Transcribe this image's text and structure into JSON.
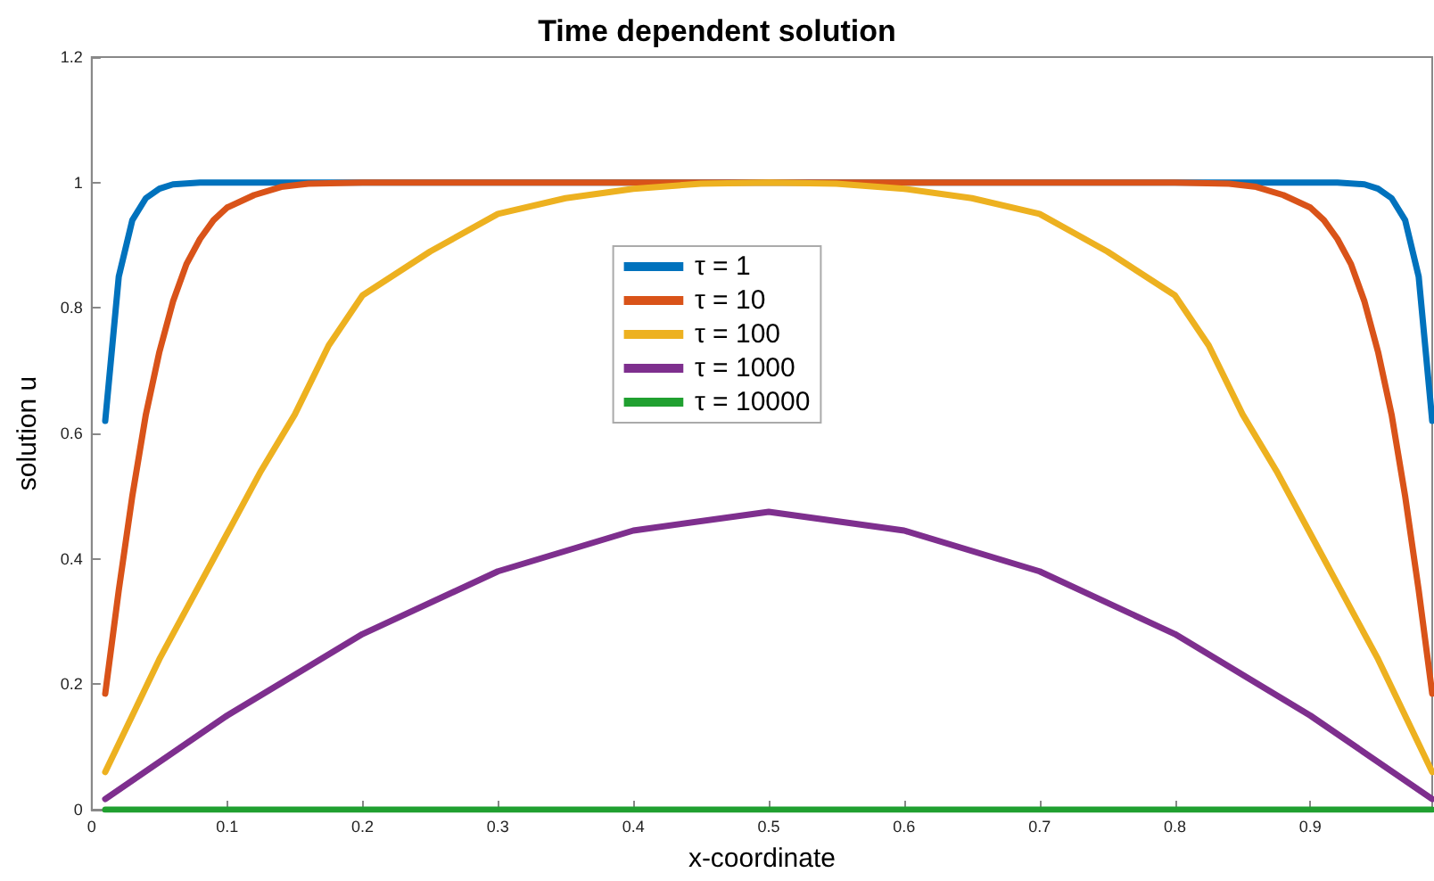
{
  "chart_data": {
    "type": "line",
    "title": "Time dependent solution",
    "xlabel": "x-coordinate",
    "ylabel": "solution u",
    "xlim": [
      0,
      0.99
    ],
    "xticks": [
      0,
      0.1,
      0.2,
      0.3,
      0.4,
      0.5,
      0.6,
      0.7,
      0.8,
      0.9
    ],
    "ylim": [
      0,
      1.2
    ],
    "yticks": [
      0,
      0.2,
      0.4,
      0.6,
      0.8,
      1,
      1.2
    ],
    "grid": false,
    "legend": "top",
    "marker": "none",
    "line_style": "solid",
    "series": [
      {
        "name": "τ = 1",
        "color": "#0072bd",
        "x": [
          0.01,
          0.02,
          0.03,
          0.04,
          0.05,
          0.06,
          0.08,
          0.92,
          0.94,
          0.95,
          0.96,
          0.97,
          0.98,
          0.99
        ],
        "values": [
          0.62,
          0.85,
          0.94,
          0.975,
          0.99,
          0.997,
          1,
          1,
          0.997,
          0.99,
          0.975,
          0.94,
          0.85,
          0.62
        ]
      },
      {
        "name": "τ = 10",
        "color": "#d95319",
        "x": [
          0.01,
          0.02,
          0.03,
          0.04,
          0.05,
          0.06,
          0.07,
          0.08,
          0.09,
          0.1,
          0.12,
          0.14,
          0.16,
          0.2,
          0.5,
          0.8,
          0.84,
          0.86,
          0.88,
          0.9,
          0.91,
          0.92,
          0.93,
          0.94,
          0.95,
          0.96,
          0.97,
          0.98,
          0.99
        ],
        "values": [
          0.185,
          0.35,
          0.5,
          0.63,
          0.73,
          0.81,
          0.87,
          0.91,
          0.94,
          0.96,
          0.98,
          0.993,
          0.998,
          1,
          1,
          1,
          0.998,
          0.993,
          0.98,
          0.96,
          0.94,
          0.91,
          0.87,
          0.81,
          0.73,
          0.63,
          0.5,
          0.35,
          0.185
        ]
      },
      {
        "name": "τ = 100",
        "color": "#edb120",
        "x": [
          0.01,
          0.03,
          0.05,
          0.075,
          0.1,
          0.125,
          0.15,
          0.175,
          0.2,
          0.25,
          0.3,
          0.35,
          0.4,
          0.45,
          0.5,
          0.55,
          0.6,
          0.65,
          0.7,
          0.75,
          0.8,
          0.825,
          0.85,
          0.875,
          0.9,
          0.925,
          0.95,
          0.97,
          0.99
        ],
        "values": [
          0.06,
          0.15,
          0.24,
          0.34,
          0.44,
          0.54,
          0.63,
          0.74,
          0.82,
          0.89,
          0.95,
          0.975,
          0.99,
          0.998,
          1,
          0.998,
          0.99,
          0.975,
          0.95,
          0.89,
          0.82,
          0.74,
          0.63,
          0.54,
          0.44,
          0.34,
          0.24,
          0.15,
          0.06
        ]
      },
      {
        "name": "τ = 1000",
        "color": "#7e2f8e",
        "x": [
          0.01,
          0.1,
          0.2,
          0.3,
          0.4,
          0.5,
          0.6,
          0.7,
          0.8,
          0.9,
          0.99
        ],
        "values": [
          0.017,
          0.15,
          0.28,
          0.38,
          0.445,
          0.475,
          0.445,
          0.38,
          0.28,
          0.15,
          0.017
        ]
      },
      {
        "name": "τ = 10000",
        "color": "#20a030",
        "x": [
          0.01,
          0.5,
          0.99
        ],
        "values": [
          0,
          0,
          0
        ]
      }
    ]
  }
}
